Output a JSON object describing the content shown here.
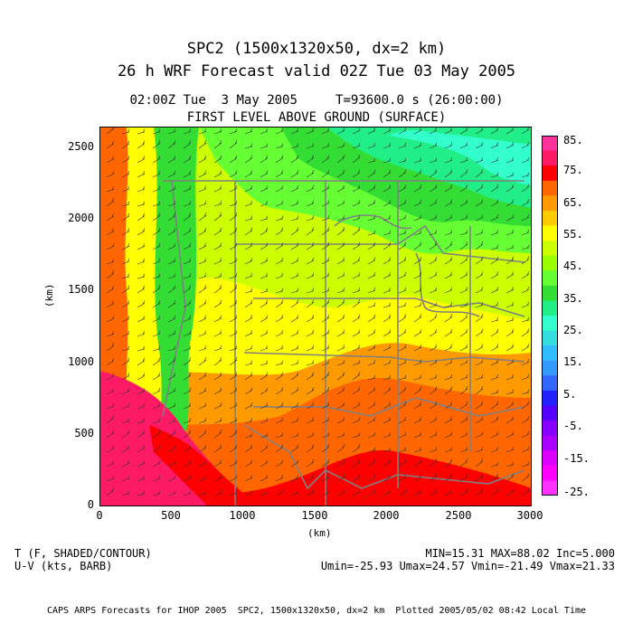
{
  "title": {
    "line1": "SPC2 (1500x1320x50, dx=2 km)",
    "line2": "26 h WRF Forecast valid 02Z Tue 03 May 2005"
  },
  "subtitle": {
    "time": "02:00Z Tue  3 May 2005     T=93600.0 s (26:00:00)",
    "level": "FIRST LEVEL ABOVE GROUND (SURFACE)"
  },
  "axes": {
    "ylabel": "(km)",
    "xlabel": "(km)",
    "yticks": [
      "0",
      "500",
      "1000",
      "1500",
      "2000",
      "2500"
    ],
    "xticks": [
      "0",
      "500",
      "1000",
      "1500",
      "2000",
      "2500",
      "3000"
    ]
  },
  "colorbar": {
    "labels": [
      "85.",
      "75.",
      "65.",
      "55.",
      "45.",
      "35.",
      "25.",
      "15.",
      "5.",
      "-5.",
      "-15.",
      "-25."
    ],
    "colors": [
      "#ff3399",
      "#ff1a66",
      "#ff0000",
      "#ff6600",
      "#ff9900",
      "#ffcc00",
      "#ffff00",
      "#ccff00",
      "#99ff00",
      "#66ff33",
      "#33dd33",
      "#22ee88",
      "#33ffcc",
      "#33dddd",
      "#33bbff",
      "#3399ff",
      "#3366ff",
      "#2222ff",
      "#5500ff",
      "#8800ff",
      "#aa00ff",
      "#dd00ff",
      "#ff00ff",
      "#ff33ff"
    ]
  },
  "footer": {
    "var1": "T (F, SHADED/CONTOUR)",
    "var2": "U-V (kts, BARB)",
    "stats1": "MIN=15.31 MAX=88.02 Inc=5.000",
    "stats2": "Umin=-25.93 Umax=24.57 Vmin=-21.49 Vmax=21.33",
    "credit": "CAPS ARPS Forecasts for IHOP 2005  SPC2, 1500x1320x50, dx=2 km  Plotted 2005/05/02 08:42 Local Time"
  },
  "map_colors": {
    "hot": "#ff0000",
    "warm": "#ff6600",
    "orange": "#ff9900",
    "yellow": "#ffff00",
    "lime": "#ccff00",
    "green": "#66ff33",
    "green2": "#33dd33",
    "teal": "#22ee88",
    "aqua": "#33ffcc",
    "magenta": "#ff1a66",
    "border": "#808080"
  }
}
